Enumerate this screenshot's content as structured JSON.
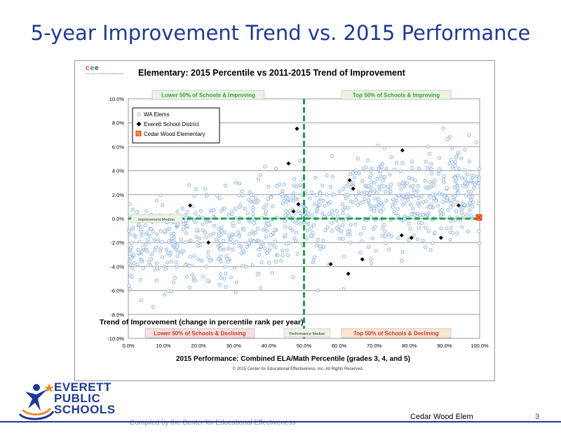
{
  "slide": {
    "title": "5-year Improvement Trend vs. 2015 Performance",
    "footer_school": "Cedar Wood Elem",
    "page_number": "3",
    "credit": "Compiled by the Center for Educational Effectiveness",
    "logo_lines": [
      "EVERETT",
      "PUBLIC",
      "SCHOOLS"
    ],
    "cee_logo_letters": "cee",
    "cee_logo_tag": "The Center for Educational Effectiveness"
  },
  "colors": {
    "title": "#1f3a93",
    "wa_points": "#8fb5e3",
    "district_points": "#000000",
    "cedar_point": "#e23a1a",
    "median_lines": "#1aa34a",
    "quadrant_green_fill": "#eaf4e4",
    "quadrant_red_fill": "#f9dfdf",
    "quadrant_orange_fill": "#fde6d2"
  },
  "chart_data": {
    "type": "scatter",
    "title": "Elementary: 2015 Percentile vs 2011-2015 Trend of Improvement",
    "xlabel": "2015 Performance: Combined ELA/Math Percentile (grades 3, 4, and 5)",
    "ylabel": "Trend of Improvement (change in percentile rank per year)",
    "copyright": "© 2015 Center for Educational Effectiveness, Inc. All Rights Reserved.",
    "xlim": [
      0,
      100
    ],
    "ylim": [
      -10,
      10
    ],
    "x_ticks": [
      "0.0%",
      "10.0%",
      "20.0%",
      "30.0%",
      "40.0%",
      "50.0%",
      "60.0%",
      "70.0%",
      "80.0%",
      "90.0%",
      "100.0%"
    ],
    "y_ticks": [
      "10.0%",
      "8.0%",
      "6.0%",
      "4.0%",
      "2.0%",
      "0.0%",
      "-2.0%",
      "-4.0%",
      "-6.0%",
      "-8.0%",
      "-10.0%"
    ],
    "grid": "horizontal",
    "legend_position": "top-left",
    "medians": {
      "performance_x": 50,
      "improvement_y": 0
    },
    "median_labels": {
      "improvement": "Improvement Median",
      "performance": "Performance Median"
    },
    "quadrant_labels": {
      "top_left": "Lower 50% of Schools & Improving",
      "top_right": "Top 50% of Schools & Improving",
      "bottom_left": "Lower 50% of Schools & Declining",
      "bottom_right": "Top 50% of Schools & Declining"
    },
    "series": [
      {
        "name": "WA Elems",
        "marker": "circle",
        "n_points": 950,
        "note": "state-wide cloud"
      },
      {
        "name": "Everett School District",
        "marker": "diamond",
        "points": [
          [
            17.6,
            1.1
          ],
          [
            22.8,
            -2.0
          ],
          [
            45.6,
            4.6
          ],
          [
            47.0,
            0.6
          ],
          [
            48.0,
            7.5
          ],
          [
            48.4,
            1.2
          ],
          [
            57.6,
            -3.8
          ],
          [
            62.6,
            -4.6
          ],
          [
            63.0,
            3.2
          ],
          [
            64.0,
            2.5
          ],
          [
            66.6,
            -3.4
          ],
          [
            78.0,
            5.7
          ],
          [
            77.8,
            -1.4
          ],
          [
            80.6,
            -1.6
          ],
          [
            89.0,
            -1.6
          ],
          [
            94.0,
            1.1
          ]
        ]
      },
      {
        "name": "Cedar Wood Elementary",
        "marker": "square-x",
        "points": [
          [
            99.8,
            0.1
          ]
        ]
      }
    ]
  }
}
